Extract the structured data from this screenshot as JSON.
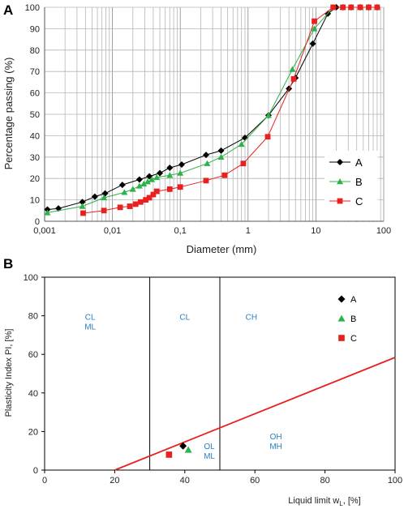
{
  "chart_data": [
    {
      "type": "line",
      "panel": "A",
      "xlabel": "Diameter (mm)",
      "ylabel": "Percentage passing (%)",
      "xscale": "log",
      "xlim": [
        0.001,
        100
      ],
      "ylim": [
        0,
        100
      ],
      "x_tick_labels": [
        "0,001",
        "0,01",
        "0,1",
        "1",
        "10",
        "100"
      ],
      "y_tick_labels": [
        "0",
        "10",
        "20",
        "30",
        "40",
        "50",
        "60",
        "70",
        "80",
        "90",
        "100"
      ],
      "grid": true,
      "legend_position": "right",
      "series": [
        {
          "name": "A",
          "color": "#000000",
          "marker": "diamond",
          "points": [
            [
              0.0011,
              5.5
            ],
            [
              0.0016,
              6
            ],
            [
              0.0036,
              9
            ],
            [
              0.0055,
              11.5
            ],
            [
              0.0078,
              13
            ],
            [
              0.014,
              17
            ],
            [
              0.025,
              19.5
            ],
            [
              0.035,
              21
            ],
            [
              0.05,
              22.5
            ],
            [
              0.07,
              25
            ],
            [
              0.105,
              26.5
            ],
            [
              0.24,
              31
            ],
            [
              0.4,
              33
            ],
            [
              0.9,
              39
            ],
            [
              2,
              49.5
            ],
            [
              4,
              62
            ],
            [
              5,
              67
            ],
            [
              9,
              83
            ],
            [
              15,
              97
            ],
            [
              20,
              100
            ],
            [
              25,
              100
            ],
            [
              33,
              100
            ],
            [
              45,
              100
            ],
            [
              60,
              100
            ],
            [
              80,
              100
            ]
          ]
        },
        {
          "name": "B",
          "color": "#2fb24a",
          "marker": "triangle",
          "points": [
            [
              0.0011,
              4
            ],
            [
              0.0036,
              7
            ],
            [
              0.0075,
              11
            ],
            [
              0.015,
              13.5
            ],
            [
              0.02,
              15
            ],
            [
              0.025,
              16.5
            ],
            [
              0.029,
              17.5
            ],
            [
              0.033,
              18.5
            ],
            [
              0.038,
              19.5
            ],
            [
              0.045,
              20.5
            ],
            [
              0.07,
              21.5
            ],
            [
              0.1,
              22.5
            ],
            [
              0.25,
              27
            ],
            [
              0.4,
              30
            ],
            [
              0.8,
              36
            ],
            [
              2,
              49.5
            ],
            [
              4.5,
              71
            ],
            [
              9.5,
              90
            ],
            [
              18,
              100
            ],
            [
              25,
              100
            ],
            [
              33,
              100
            ],
            [
              45,
              100
            ],
            [
              60,
              100
            ],
            [
              80,
              100
            ]
          ]
        },
        {
          "name": "C",
          "color": "#e82020",
          "marker": "square",
          "points": [
            [
              0.0037,
              3.8
            ],
            [
              0.0075,
              5
            ],
            [
              0.013,
              6.5
            ],
            [
              0.018,
              7
            ],
            [
              0.022,
              8
            ],
            [
              0.026,
              9
            ],
            [
              0.031,
              10
            ],
            [
              0.035,
              11
            ],
            [
              0.04,
              12.5
            ],
            [
              0.045,
              14
            ],
            [
              0.07,
              15
            ],
            [
              0.1,
              16
            ],
            [
              0.24,
              19
            ],
            [
              0.45,
              21.5
            ],
            [
              0.85,
              27
            ],
            [
              1.95,
              39.5
            ],
            [
              4.7,
              66.5
            ],
            [
              9.5,
              93.5
            ],
            [
              18,
              100
            ],
            [
              25,
              100
            ],
            [
              33,
              100
            ],
            [
              45,
              100
            ],
            [
              60,
              100
            ],
            [
              80,
              100
            ]
          ]
        }
      ]
    },
    {
      "type": "scatter",
      "panel": "B",
      "xlabel": "Liquid limit w",
      "xlabel_sub": "L",
      "xlabel_suffix": ", [%]",
      "ylabel": "Plasticity Index PI, [%]",
      "xlim": [
        0,
        100
      ],
      "ylim": [
        0,
        100
      ],
      "x_tick_labels": [
        "0",
        "20",
        "40",
        "60",
        "80",
        "100"
      ],
      "y_tick_labels": [
        "0",
        "20",
        "40",
        "60",
        "80",
        "100"
      ],
      "legend_position": "top-right",
      "zone_boundaries_x": [
        30,
        50
      ],
      "a_line": {
        "color": "#e82020",
        "points": [
          [
            20,
            0
          ],
          [
            100,
            58.4
          ]
        ]
      },
      "zones": [
        {
          "lines": [
            "CL",
            "ML"
          ],
          "x": 13,
          "y": 78
        },
        {
          "lines": [
            "CL"
          ],
          "x": 40,
          "y": 78
        },
        {
          "lines": [
            "CH"
          ],
          "x": 59,
          "y": 78
        },
        {
          "lines": [
            "OL",
            "ML"
          ],
          "x": 47,
          "y": 11
        },
        {
          "lines": [
            "OH",
            "MH"
          ],
          "x": 66,
          "y": 16
        }
      ],
      "series": [
        {
          "name": "A",
          "color": "#000000",
          "marker": "diamond",
          "points": [
            [
              39.5,
              12.5
            ]
          ]
        },
        {
          "name": "B",
          "color": "#2fb24a",
          "marker": "triangle",
          "points": [
            [
              41,
              10.5
            ]
          ]
        },
        {
          "name": "C",
          "color": "#e82020",
          "marker": "square",
          "points": [
            [
              35.5,
              8
            ]
          ]
        }
      ]
    }
  ]
}
